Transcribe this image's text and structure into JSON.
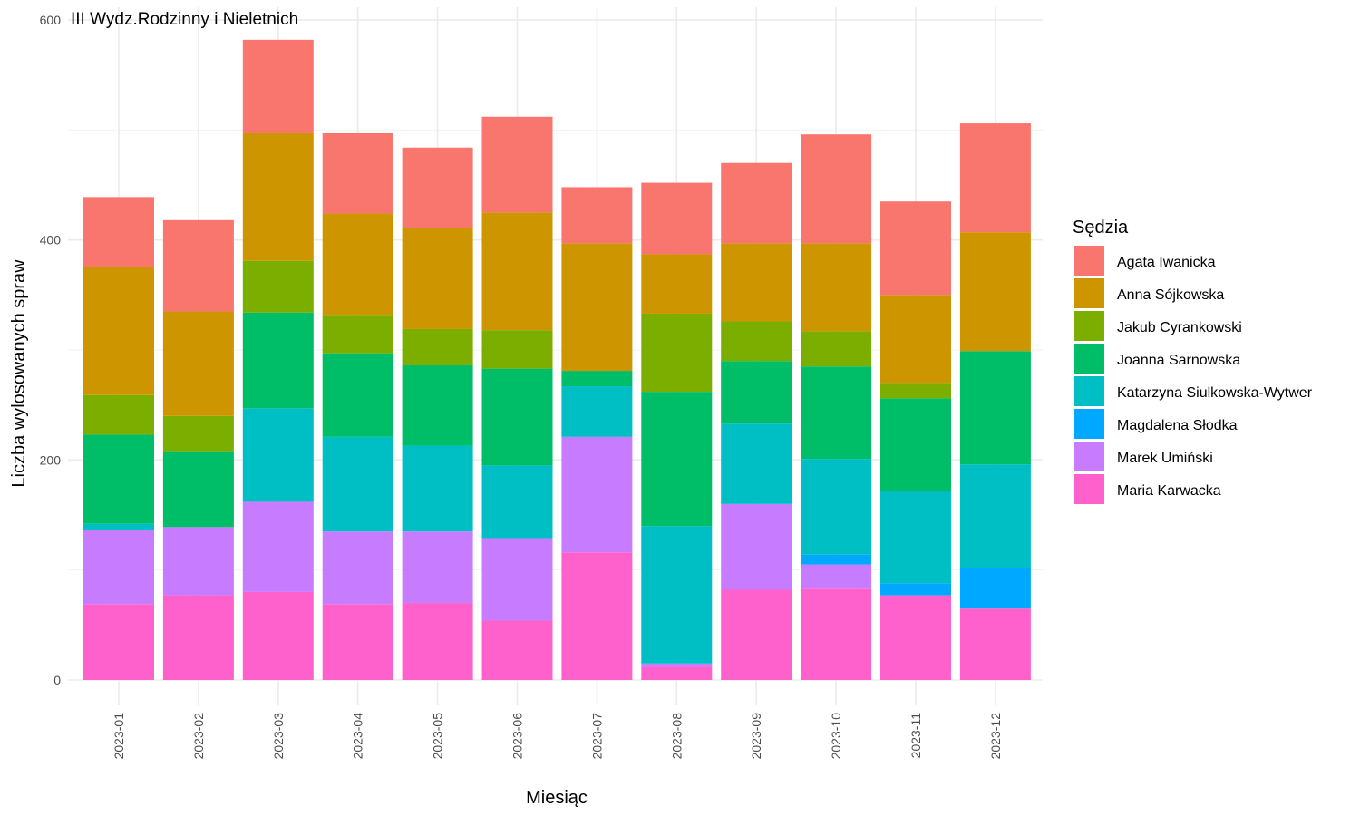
{
  "chart_data": {
    "type": "bar",
    "stacked": true,
    "title": "III Wydz.Rodzinny i Nieletnich",
    "xlabel": "Miesiąc",
    "ylabel": "Liczba wylosowanych spraw",
    "ylim": [
      0,
      600
    ],
    "yticks": [
      0,
      200,
      400,
      600
    ],
    "grid": true,
    "legend_title": "Sędzia",
    "legend_position": "right",
    "categories": [
      "2023-01",
      "2023-02",
      "2023-03",
      "2023-04",
      "2023-05",
      "2023-06",
      "2023-07",
      "2023-08",
      "2023-09",
      "2023-10",
      "2023-11",
      "2023-12"
    ],
    "series": [
      {
        "name": "Maria Karwacka",
        "color": "#FF61CC",
        "values": [
          69,
          77,
          80,
          69,
          70,
          54,
          116,
          12,
          82,
          83,
          77,
          65
        ]
      },
      {
        "name": "Marek Umiński",
        "color": "#C77CFF",
        "values": [
          67,
          62,
          82,
          66,
          65,
          75,
          105,
          3,
          78,
          22,
          0,
          0
        ]
      },
      {
        "name": "Magdalena Słodka",
        "color": "#00A9FF",
        "values": [
          0,
          0,
          0,
          0,
          0,
          0,
          0,
          0,
          0,
          9,
          11,
          37
        ]
      },
      {
        "name": "Katarzyna Siulkowska-Wytwer",
        "color": "#00BFC4",
        "values": [
          6,
          0,
          85,
          86,
          78,
          66,
          46,
          125,
          73,
          87,
          84,
          94
        ]
      },
      {
        "name": "Joanna Sarnowska",
        "color": "#00BE67",
        "values": [
          81,
          69,
          87,
          76,
          73,
          88,
          14,
          122,
          57,
          84,
          84,
          103
        ]
      },
      {
        "name": "Jakub Cyrankowski",
        "color": "#7CAE00",
        "values": [
          36,
          32,
          47,
          35,
          33,
          35,
          0,
          71,
          36,
          32,
          14,
          0
        ]
      },
      {
        "name": "Anna Sójkowska",
        "color": "#CD9600",
        "values": [
          116,
          95,
          116,
          92,
          92,
          107,
          116,
          54,
          71,
          80,
          80,
          108
        ]
      },
      {
        "name": "Agata Iwanicka",
        "color": "#F8766D",
        "values": [
          64,
          83,
          85,
          73,
          73,
          87,
          51,
          65,
          73,
          99,
          85,
          99
        ]
      }
    ],
    "legend_order": [
      "Agata Iwanicka",
      "Anna Sójkowska",
      "Jakub Cyrankowski",
      "Joanna Sarnowska",
      "Katarzyna Siulkowska-Wytwer",
      "Magdalena Słodka",
      "Marek Umiński",
      "Maria Karwacka"
    ]
  }
}
